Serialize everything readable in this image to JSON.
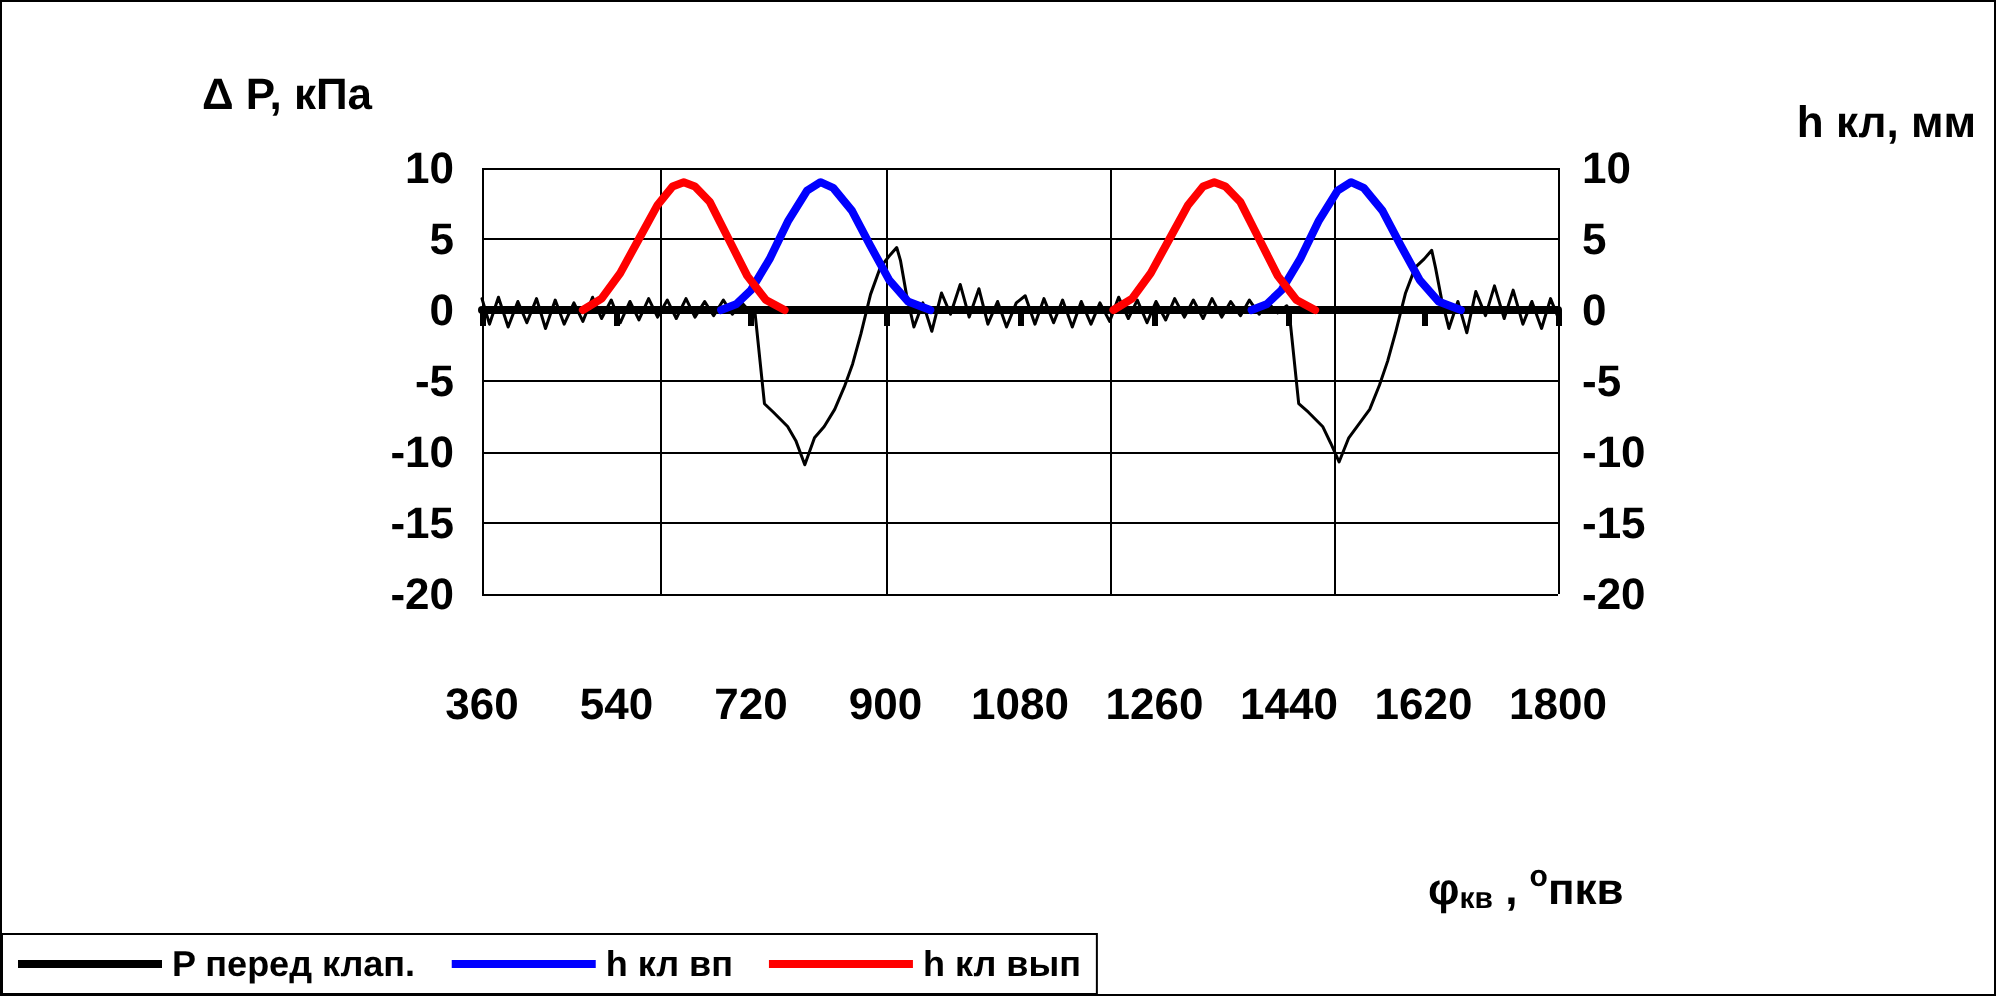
{
  "chart_data": {
    "type": "line",
    "ylabel": "Δ P, кПа",
    "y2label": "h кл, мм",
    "xlabel": "φ$_{кв}$ , $^{o}$пкв",
    "xlim": [
      360,
      1800
    ],
    "xticks": [
      360,
      540,
      720,
      900,
      1080,
      1260,
      1440,
      1620,
      1800
    ],
    "ylim": [
      -20,
      10
    ],
    "yticks": [
      -20,
      -15,
      -10,
      -5,
      0,
      5,
      10
    ],
    "y2lim": [
      -20,
      10
    ],
    "y2ticks": [
      -20,
      -15,
      -10,
      -5,
      0,
      5,
      10
    ],
    "grid": true,
    "legend": "bottom left",
    "marker": "none",
    "series": [
      {
        "name": "P перед клап.",
        "color": "#000000",
        "x": [
          360,
          370,
          382,
          395,
          408,
          420,
          433,
          445,
          458,
          470,
          483,
          495,
          508,
          520,
          533,
          545,
          558,
          570,
          583,
          595,
          608,
          620,
          633,
          645,
          658,
          670,
          683,
          695,
          708,
          720,
          725,
          738,
          750,
          769,
          780,
          792,
          805,
          818,
          832,
          845,
          856,
          867,
          880,
          893,
          905,
          915,
          920,
          928,
          938,
          950,
          962,
          975,
          987,
          1000,
          1012,
          1025,
          1037,
          1050,
          1062,
          1075,
          1087,
          1100,
          1112,
          1125,
          1137,
          1150,
          1162,
          1175,
          1187,
          1200,
          1212,
          1225,
          1237,
          1250,
          1262,
          1275,
          1287,
          1300,
          1312,
          1325,
          1337,
          1350,
          1362,
          1375,
          1387,
          1400,
          1412,
          1425,
          1437,
          1440,
          1453,
          1466,
          1485,
          1496,
          1507,
          1520,
          1534,
          1548,
          1561,
          1572,
          1583,
          1596,
          1609,
          1621,
          1631,
          1636,
          1644,
          1654,
          1666,
          1678,
          1690,
          1703,
          1715,
          1728,
          1740,
          1753,
          1765,
          1778,
          1790,
          1800
        ],
        "values": [
          0.8,
          -1.0,
          0.9,
          -1.2,
          0.6,
          -0.9,
          0.8,
          -1.3,
          0.7,
          -1.0,
          0.5,
          -0.8,
          0.9,
          -0.6,
          0.7,
          -0.9,
          0.6,
          -0.7,
          0.8,
          -0.5,
          0.7,
          -0.6,
          0.8,
          -0.5,
          0.6,
          -0.4,
          0.7,
          -0.3,
          0.5,
          -0.2,
          0.0,
          -6.6,
          -7.2,
          -8.2,
          -9.2,
          -10.9,
          -9.0,
          -8.2,
          -7.0,
          -5.4,
          -3.8,
          -1.7,
          1.1,
          3.0,
          3.8,
          4.4,
          3.5,
          1.1,
          -1.2,
          0.5,
          -1.5,
          1.2,
          -0.3,
          1.8,
          -0.5,
          1.5,
          -1.0,
          0.6,
          -1.2,
          0.5,
          1.0,
          -1.0,
          0.8,
          -0.9,
          0.7,
          -1.2,
          0.6,
          -1.0,
          0.5,
          -0.8,
          0.9,
          -0.6,
          0.7,
          -0.9,
          0.6,
          -0.7,
          0.8,
          -0.5,
          0.7,
          -0.6,
          0.8,
          -0.5,
          0.6,
          -0.4,
          0.7,
          -0.3,
          0.5,
          -0.2,
          0.3,
          0.0,
          -6.6,
          -7.2,
          -8.2,
          -9.4,
          -10.7,
          -9.0,
          -8.0,
          -7.0,
          -5.3,
          -3.6,
          -1.5,
          1.2,
          3.0,
          3.6,
          4.2,
          3.0,
          0.8,
          -1.3,
          0.6,
          -1.6,
          1.3,
          -0.4,
          1.7,
          -0.6,
          1.4,
          -1.0,
          0.6,
          -1.3,
          0.8,
          -0.5
        ]
      },
      {
        "name": "h кл вп",
        "color": "#0000ff",
        "axis": "y2",
        "x": [
          680,
          700,
          720,
          745,
          770,
          795,
          813,
          830,
          855,
          880,
          905,
          930,
          960,
          1000,
          1390,
          1410,
          1430,
          1455,
          1480,
          1505,
          1523,
          1540,
          1565,
          1590,
          1615,
          1640,
          1670
        ],
        "values": [
          0,
          0.4,
          1.4,
          3.6,
          6.3,
          8.4,
          9,
          8.6,
          7,
          4.5,
          2.1,
          0.6,
          0,
          null,
          0,
          0.4,
          1.4,
          3.6,
          6.3,
          8.4,
          9,
          8.6,
          7,
          4.5,
          2.1,
          0.6,
          0
        ]
      },
      {
        "name": "h кл вып",
        "color": "#ff0000",
        "axis": "y2",
        "x": [
          495,
          520,
          545,
          570,
          595,
          615,
          630,
          645,
          665,
          690,
          715,
          740,
          765,
          1000,
          1205,
          1230,
          1255,
          1280,
          1305,
          1325,
          1340,
          1355,
          1375,
          1400,
          1425,
          1450,
          1475
        ],
        "values": [
          0,
          0.8,
          2.6,
          5,
          7.4,
          8.7,
          9,
          8.7,
          7.6,
          5,
          2.4,
          0.7,
          0,
          null,
          0,
          0.8,
          2.6,
          5,
          7.4,
          8.7,
          9,
          8.7,
          7.6,
          5,
          2.4,
          0.7,
          0
        ]
      }
    ]
  }
}
